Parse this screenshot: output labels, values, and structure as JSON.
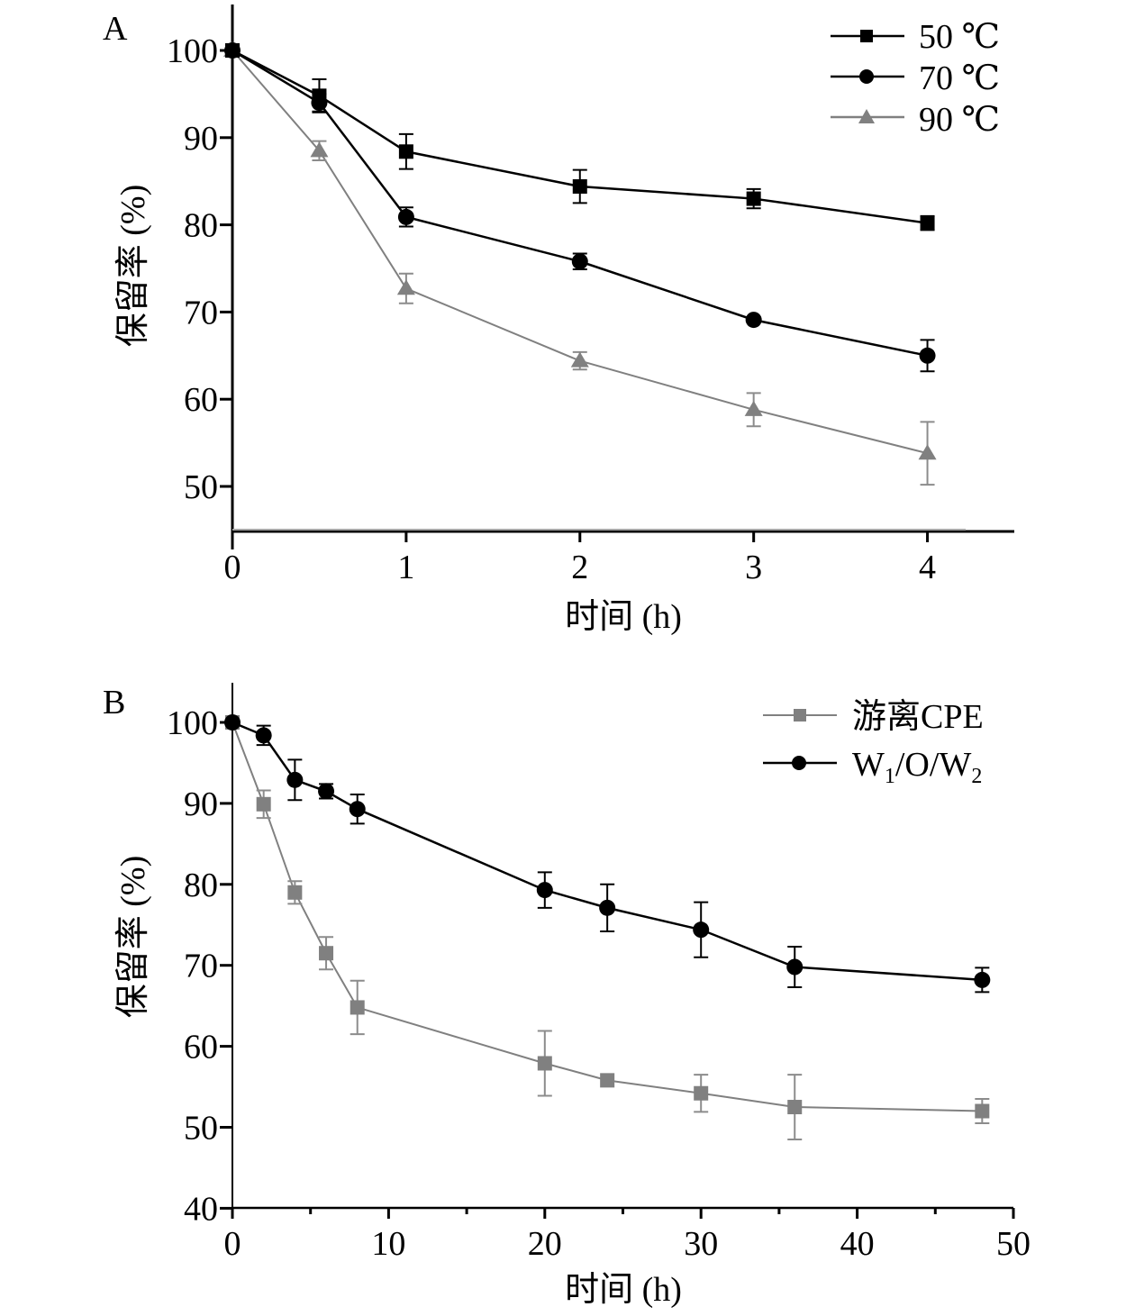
{
  "figure": {
    "panels": [
      "A",
      "B"
    ]
  },
  "colors": {
    "black": "#000000",
    "gray": "#808080",
    "light_gray": "#a6a6a6"
  },
  "chart_data": [
    {
      "panel_label": "A",
      "type": "line",
      "title": "",
      "xlabel": "时间 (h)",
      "ylabel": "保留率 (%)",
      "xlim": [
        0,
        4.5
      ],
      "ylim": [
        44.8,
        105
      ],
      "xticks": [
        0,
        1,
        2,
        3,
        4
      ],
      "xtick_labels": [
        "0",
        "1",
        "2",
        "3",
        "4"
      ],
      "yticks": [
        50,
        60,
        70,
        80,
        90,
        100
      ],
      "ytick_labels": [
        "50",
        "60",
        "70",
        "80",
        "90",
        "100"
      ],
      "grid": false,
      "legend_position": "top-right",
      "baseline_reference": {
        "value": 45,
        "xmax": 4.22,
        "color": "#a6a6a6"
      },
      "x": [
        0,
        0.5,
        1,
        2,
        3,
        4
      ],
      "series": [
        {
          "name": "50 ℃",
          "marker": "square",
          "color": "#000000",
          "values": [
            100,
            94.8,
            88.4,
            84.4,
            83.0,
            80.2
          ],
          "errors": [
            0,
            1.9,
            2.0,
            1.9,
            1.1,
            0.8
          ]
        },
        {
          "name": "70 ℃",
          "marker": "circle",
          "color": "#000000",
          "values": [
            100,
            94.0,
            80.9,
            75.8,
            69.1,
            65.0
          ],
          "errors": [
            0,
            1.0,
            1.1,
            0.9,
            0.3,
            1.8
          ]
        },
        {
          "name": "90 ℃",
          "marker": "triangle",
          "color": "#808080",
          "values": [
            100,
            88.5,
            72.7,
            64.4,
            58.8,
            53.8
          ],
          "errors": [
            0,
            1.1,
            1.7,
            1.0,
            1.9,
            3.6
          ]
        }
      ]
    },
    {
      "panel_label": "B",
      "type": "line",
      "title": "",
      "xlabel": "时间 (h)",
      "ylabel": "保留率 (%)",
      "xlim": [
        0,
        50
      ],
      "ylim": [
        40,
        105
      ],
      "xticks": [
        0,
        10,
        20,
        30,
        40,
        50
      ],
      "xtick_labels": [
        "0",
        "10",
        "20",
        "30",
        "40",
        "50"
      ],
      "xminor_ticks": [
        5,
        15,
        25,
        35,
        45
      ],
      "yticks": [
        40,
        50,
        60,
        70,
        80,
        90,
        100
      ],
      "ytick_labels": [
        "40",
        "50",
        "60",
        "70",
        "80",
        "90",
        "100"
      ],
      "grid": false,
      "legend_position": "top-right",
      "x": [
        0,
        2,
        4,
        6,
        8,
        20,
        24,
        30,
        36,
        48
      ],
      "series": [
        {
          "name": "游离CPE",
          "marker": "square",
          "color": "#808080",
          "values": [
            100,
            89.9,
            79.0,
            71.5,
            64.8,
            57.9,
            55.8,
            54.2,
            52.5,
            52.0
          ],
          "errors": [
            0,
            1.7,
            1.4,
            2.0,
            3.3,
            4.0,
            0,
            2.3,
            4.0,
            1.5
          ]
        },
        {
          "name": "W1/O/W2",
          "name_parts": {
            "w": "W",
            "sub1": "1",
            "mid": "/O/",
            "w2": "W",
            "sub2": "2"
          },
          "marker": "circle",
          "color": "#000000",
          "values": [
            100,
            98.4,
            92.9,
            91.5,
            89.3,
            79.3,
            77.1,
            74.4,
            69.8,
            68.2
          ],
          "errors": [
            0,
            1.2,
            2.5,
            0.9,
            1.8,
            2.2,
            2.9,
            3.4,
            2.5,
            1.5
          ]
        }
      ]
    }
  ]
}
